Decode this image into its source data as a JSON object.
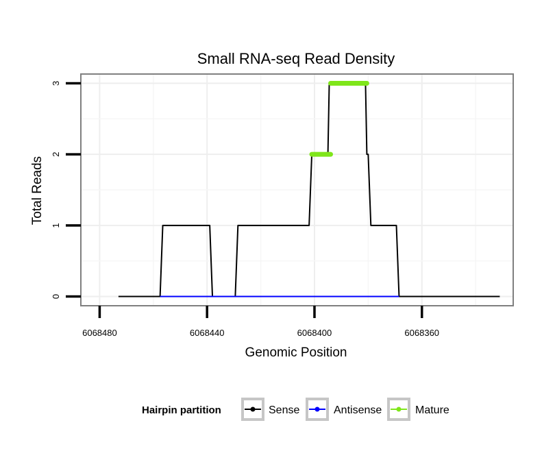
{
  "chart_data": {
    "type": "line",
    "title": "Small RNA-seq Read Density",
    "xlabel": "Genomic Position",
    "ylabel": "Total Reads",
    "xlim": [
      6068487,
      6068326
    ],
    "ylim": [
      -0.13,
      3.13
    ],
    "x_reversed": true,
    "xticks": [
      6068480,
      6068440,
      6068400,
      6068360
    ],
    "xtick_labels": [
      "6068480",
      "6068440",
      "6068400",
      "6068360"
    ],
    "yticks": [
      0,
      1,
      2,
      3
    ],
    "ytick_labels": [
      "0",
      "1",
      "2",
      "3"
    ],
    "grid": true,
    "legend": {
      "title": "Hairpin partition",
      "position": "bottom",
      "entries": [
        "Sense",
        "Antisense",
        "Mature"
      ]
    },
    "series": [
      {
        "name": "Sense",
        "color": "#000000",
        "points": [
          [
            6068473,
            0
          ],
          [
            6068457.5,
            0
          ],
          [
            6068456.5,
            1
          ],
          [
            6068439,
            1
          ],
          [
            6068438,
            0
          ],
          [
            6068429.5,
            0
          ],
          [
            6068428.5,
            1
          ],
          [
            6068402,
            1
          ],
          [
            6068401,
            2
          ],
          [
            6068395,
            2
          ],
          [
            6068394.5,
            3
          ],
          [
            6068381,
            3
          ],
          [
            6068380.5,
            2
          ],
          [
            6068380,
            2
          ],
          [
            6068379,
            1
          ],
          [
            6068369.5,
            1
          ],
          [
            6068368.5,
            0
          ],
          [
            6068331,
            0
          ]
        ]
      },
      {
        "name": "Antisense",
        "color": "#0000ff",
        "points": [
          [
            6068457.5,
            0
          ],
          [
            6068368.5,
            0
          ]
        ]
      },
      {
        "name": "Mature",
        "color": "#7fe61a",
        "segments": [
          [
            [
              6068401,
              2
            ],
            [
              6068394,
              2
            ]
          ],
          [
            [
              6068394,
              3
            ],
            [
              6068380.5,
              3
            ]
          ]
        ]
      }
    ]
  }
}
